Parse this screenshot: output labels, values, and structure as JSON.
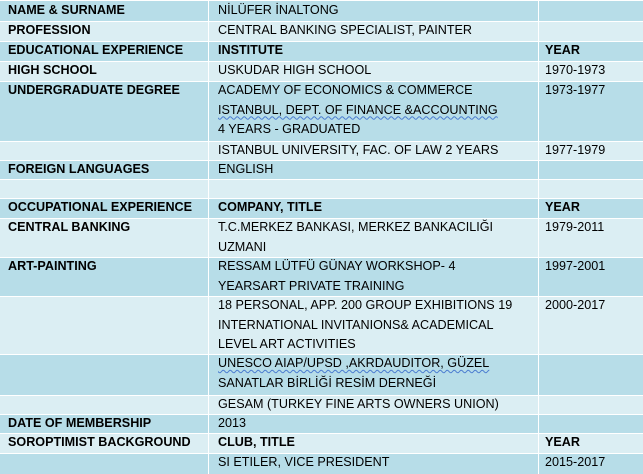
{
  "document": {
    "rows": [
      {
        "label": "NAME & SURNAME",
        "value": "NİLÜFER İNALTONG",
        "year": ""
      },
      {
        "label": "PROFESSION",
        "value": "CENTRAL BANKING SPECIALIST, PAINTER",
        "year": ""
      },
      {
        "label": "EDUCATIONAL EXPERIENCE",
        "value": "INSTITUTE",
        "year": "YEAR"
      },
      {
        "label": "HIGH SCHOOL",
        "value": "USKUDAR HIGH SCHOOL",
        "year": "1970-1973"
      },
      {
        "label": "UNDERGRADUATE DEGREE",
        "value_lines": [
          "ACADEMY OF ECONOMICS & COMMERCE",
          "ISTANBUL, DEPT. OF FINANCE &ACCOUNTING",
          "4 YEARS - GRADUATED"
        ],
        "year": "1973-1977"
      },
      {
        "label": "",
        "value": "ISTANBUL UNIVERSITY, FAC. OF LAW 2 YEARS",
        "year": "1977-1979"
      },
      {
        "label": "FOREIGN LANGUAGES",
        "value": "ENGLISH",
        "year": ""
      },
      {
        "label": "",
        "value": "",
        "year": ""
      },
      {
        "label": "OCCUPATIONAL EXPERIENCE",
        "value": "COMPANY, TITLE",
        "year": "YEAR"
      },
      {
        "label": "CENTRAL BANKING",
        "value_lines": [
          "T.C.MERKEZ BANKASI, MERKEZ BANKACILIĞI",
          "UZMANI"
        ],
        "year": "1979-2011"
      },
      {
        "label": "ART-PAINTING",
        "value_lines": [
          "RESSAM LÜTFÜ GÜNAY WORKSHOP- 4",
          "YEARSART PRIVATE TRAINING"
        ],
        "year": "1997-2001"
      },
      {
        "label": "",
        "value_lines": [
          "18 PERSONAL, APP. 200 GROUP EXHIBITIONS 19",
          "INTERNATIONAL INVITANIONS& ACADEMICAL",
          "LEVEL ART ACTIVITIES"
        ],
        "year": "2000-2017"
      },
      {
        "label": "",
        "value_lines": [
          "UNESCO AIAP/UPSD ,AKRDAUDITOR, GÜZEL",
          "SANATLAR BİRLİĞİ RESİM DERNEĞİ"
        ],
        "year": ""
      },
      {
        "label": "",
        "value": "GESAM (TURKEY FINE ARTS OWNERS UNION)",
        "year": ""
      },
      {
        "label": "DATE OF MEMBERSHIP",
        "value": "2013",
        "year": ""
      },
      {
        "label": "SOROPTIMIST BACKGROUND",
        "value": "CLUB, TITLE",
        "year": "YEAR"
      },
      {
        "label": "",
        "value": "SI ETILER, VICE PRESIDENT",
        "year": "2015-2017"
      }
    ]
  },
  "colors": {
    "band_dark": "#b7dde8",
    "band_light": "#dbeef3",
    "divider": "#ffffff",
    "spellcheck": "#4a7bd0"
  }
}
